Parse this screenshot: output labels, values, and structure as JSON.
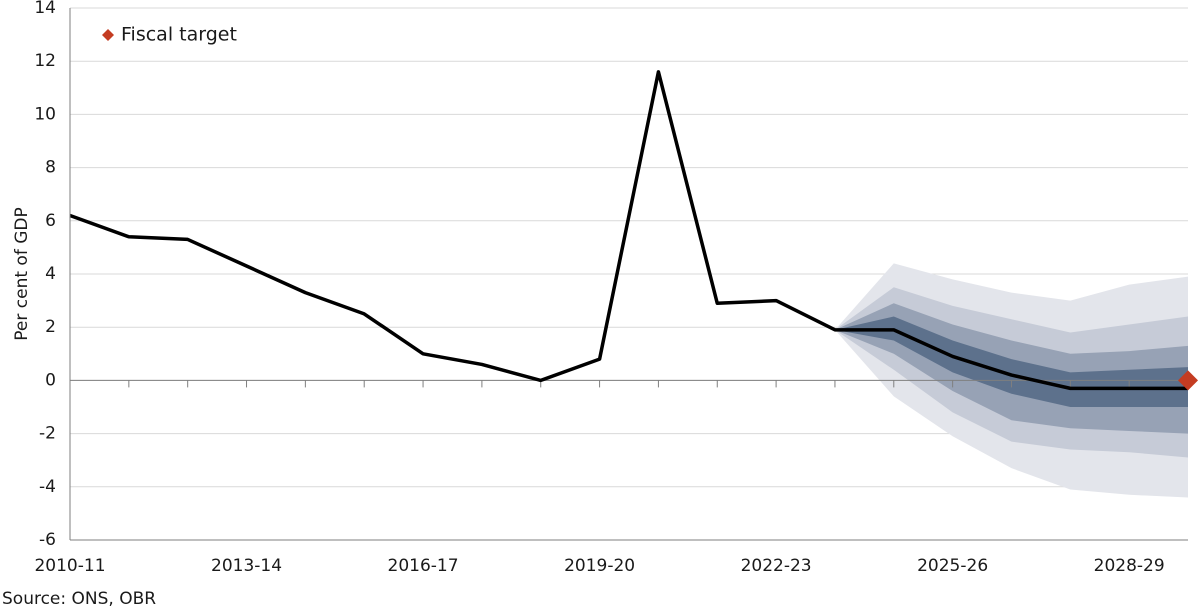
{
  "chart_data": {
    "type": "fan",
    "y_label": "Per cent of GDP",
    "source": "Source: ONS, OBR",
    "categories": [
      "2010-11",
      null,
      null,
      "2013-14",
      null,
      null,
      "2016-17",
      null,
      null,
      "2019-20",
      null,
      null,
      "2022-23",
      null,
      null,
      "2025-26",
      null,
      null,
      "2028-29",
      null
    ],
    "values": [
      6.2,
      5.4,
      5.3,
      4.3,
      3.3,
      2.5,
      1.0,
      0.6,
      0.0,
      0.8,
      11.6,
      2.9,
      3.0,
      1.9,
      1.9,
      0.9,
      0.2,
      -0.3,
      -0.3,
      -0.3
    ],
    "line_color": "#000000",
    "bands": [
      {
        "color": "#e3e5eb",
        "upper": [
          null,
          null,
          null,
          null,
          null,
          null,
          null,
          null,
          null,
          null,
          null,
          null,
          null,
          1.9,
          4.4,
          3.8,
          3.3,
          3.0,
          3.6,
          3.9
        ],
        "lower": [
          null,
          null,
          null,
          null,
          null,
          null,
          null,
          null,
          null,
          null,
          null,
          null,
          null,
          1.9,
          -0.6,
          -2.1,
          -3.3,
          -4.1,
          -4.3,
          -4.4
        ]
      },
      {
        "color": "#c6cbd7",
        "upper": [
          null,
          null,
          null,
          null,
          null,
          null,
          null,
          null,
          null,
          null,
          null,
          null,
          null,
          1.9,
          3.5,
          2.8,
          2.3,
          1.8,
          2.1,
          2.4
        ],
        "lower": [
          null,
          null,
          null,
          null,
          null,
          null,
          null,
          null,
          null,
          null,
          null,
          null,
          null,
          1.9,
          0.4,
          -1.2,
          -2.3,
          -2.6,
          -2.7,
          -2.9
        ]
      },
      {
        "color": "#97a2b5",
        "upper": [
          null,
          null,
          null,
          null,
          null,
          null,
          null,
          null,
          null,
          null,
          null,
          null,
          null,
          1.9,
          2.9,
          2.1,
          1.5,
          1.0,
          1.1,
          1.3
        ],
        "lower": [
          null,
          null,
          null,
          null,
          null,
          null,
          null,
          null,
          null,
          null,
          null,
          null,
          null,
          1.9,
          1.0,
          -0.4,
          -1.5,
          -1.8,
          -1.9,
          -2.0
        ]
      },
      {
        "color": "#5d718c",
        "upper": [
          null,
          null,
          null,
          null,
          null,
          null,
          null,
          null,
          null,
          null,
          null,
          null,
          null,
          1.9,
          2.4,
          1.5,
          0.8,
          0.3,
          0.4,
          0.5
        ],
        "lower": [
          null,
          null,
          null,
          null,
          null,
          null,
          null,
          null,
          null,
          null,
          null,
          null,
          null,
          1.9,
          1.5,
          0.3,
          -0.5,
          -1.0,
          -1.0,
          -1.0
        ]
      }
    ],
    "series": [
      {
        "name": "Fiscal target",
        "color": "#c43c22",
        "marker": "diamond",
        "values": [
          null,
          null,
          null,
          null,
          null,
          null,
          null,
          null,
          null,
          null,
          null,
          null,
          null,
          null,
          null,
          null,
          null,
          null,
          null,
          0.0
        ]
      }
    ],
    "ylim": [
      -6,
      14
    ],
    "yticks": [
      -6,
      -4,
      -2,
      0,
      2,
      4,
      6,
      8,
      10,
      12,
      14
    ],
    "grid": true
  }
}
